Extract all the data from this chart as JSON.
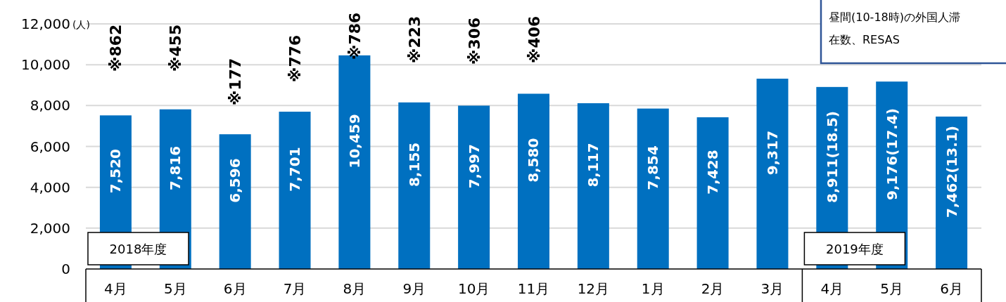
{
  "chart_data": {
    "type": "bar",
    "ylabel": "(人)",
    "categories": [
      "4月",
      "5月",
      "6月",
      "7月",
      "8月",
      "9月",
      "10月",
      "11月",
      "12月",
      "1月",
      "2月",
      "3月",
      "4月",
      "5月",
      "6月"
    ],
    "values": [
      7520,
      7816,
      6596,
      7701,
      10459,
      8155,
      7997,
      8580,
      8117,
      7854,
      7428,
      9317,
      8911,
      9176,
      7462
    ],
    "value_labels": [
      "7,520",
      "7,816",
      "6,596",
      "7,701",
      "10,459",
      "8,155",
      "7,997",
      "8,580",
      "8,117",
      "7,854",
      "7,428",
      "9,317",
      "8,911(18.5)",
      "9,176(17.4)",
      "7,462(13.1)"
    ],
    "color": "#0070c0",
    "ylim": [
      0,
      12000
    ],
    "yticks": [
      {
        "value": 0,
        "label": "0"
      },
      {
        "value": 2000,
        "label": "2,000"
      },
      {
        "value": 4000,
        "label": "4,000"
      },
      {
        "value": 6000,
        "label": "6,000"
      },
      {
        "value": 8000,
        "label": "8,000"
      },
      {
        "value": 10000,
        "label": "10,000"
      },
      {
        "value": 12000,
        "label": "12,000"
      }
    ],
    "grid": "y",
    "annotations": [
      "※862",
      "※455",
      "※177",
      "※776",
      "※786",
      "※223",
      "※306",
      "※406",
      "2018年度",
      "2019年度",
      "昼間(10-18時)の外国人滞在数、RESAS"
    ]
  }
}
